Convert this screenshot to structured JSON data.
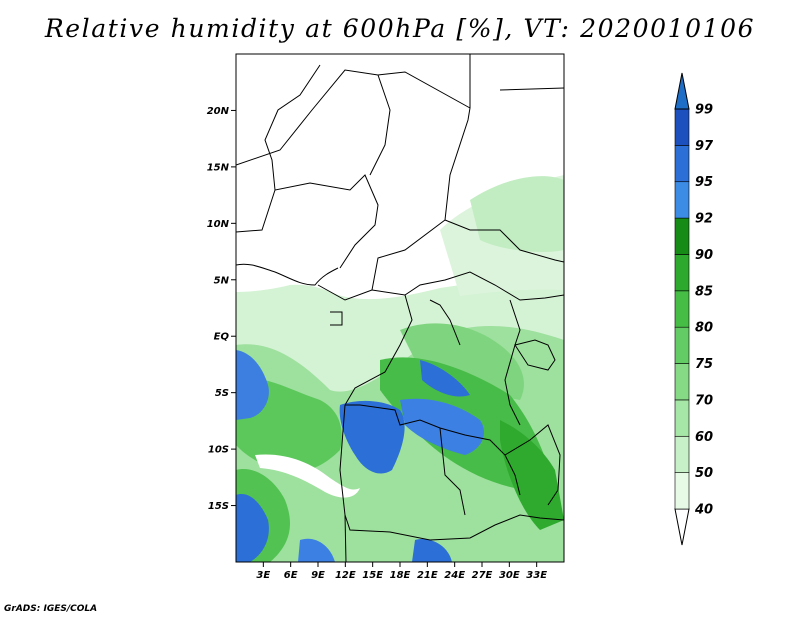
{
  "title": "Relative humidity at 600hPa [%], VT: 2020010106",
  "credit": "GrADS: IGES/COLA",
  "map": {
    "lon_range": [
      0,
      36
    ],
    "lat_range": [
      -20,
      25
    ],
    "lat_ticks": [
      {
        "value": 20,
        "label": "20N"
      },
      {
        "value": 15,
        "label": "15N"
      },
      {
        "value": 10,
        "label": "10N"
      },
      {
        "value": 5,
        "label": "5N"
      },
      {
        "value": 0,
        "label": "EQ"
      },
      {
        "value": -5,
        "label": "5S"
      },
      {
        "value": -10,
        "label": "10S"
      },
      {
        "value": -15,
        "label": "15S"
      }
    ],
    "lon_ticks": [
      {
        "value": 3,
        "label": "3E"
      },
      {
        "value": 6,
        "label": "6E"
      },
      {
        "value": 9,
        "label": "9E"
      },
      {
        "value": 12,
        "label": "12E"
      },
      {
        "value": 15,
        "label": "15E"
      },
      {
        "value": 18,
        "label": "18E"
      },
      {
        "value": 21,
        "label": "21E"
      },
      {
        "value": 24,
        "label": "24E"
      },
      {
        "value": 27,
        "label": "27E"
      },
      {
        "value": 30,
        "label": "30E"
      },
      {
        "value": 33,
        "label": "33E"
      }
    ]
  },
  "colorbar": {
    "levels": [
      "40",
      "50",
      "60",
      "70",
      "75",
      "80",
      "85",
      "90",
      "92",
      "95",
      "97",
      "99"
    ],
    "colors": [
      "#ffffff",
      "#e6fae6",
      "#c8f0c8",
      "#a6e6a6",
      "#86da86",
      "#64cc64",
      "#46be46",
      "#2daa2d",
      "#168c16",
      "#3c8ce6",
      "#2c6fd6",
      "#1c50be",
      "#1e6ec8"
    ]
  }
}
